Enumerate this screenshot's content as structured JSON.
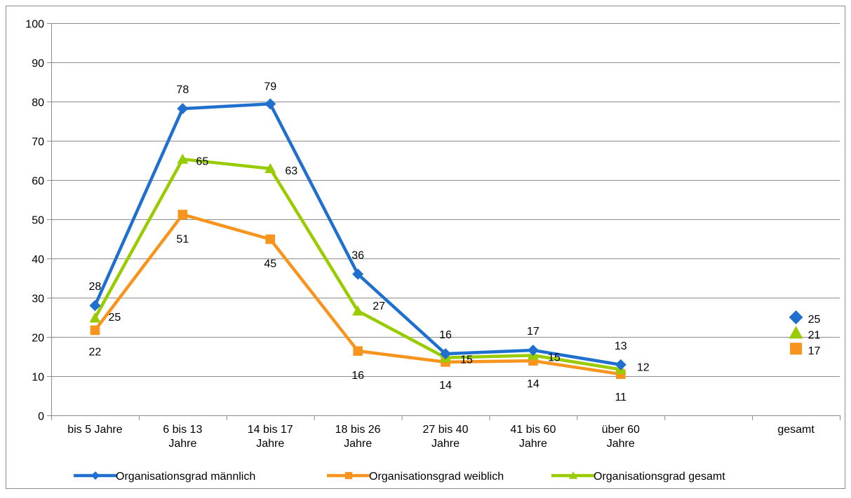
{
  "chart_data": {
    "type": "line",
    "categories": [
      [
        "bis 5 Jahre"
      ],
      [
        "6 bis 13",
        "Jahre"
      ],
      [
        "14 bis 17",
        "Jahre"
      ],
      [
        "18 bis 26",
        "Jahre"
      ],
      [
        "27 bis 40",
        "Jahre"
      ],
      [
        "41 bis 60",
        "Jahre"
      ],
      [
        "über 60",
        "Jahre"
      ],
      [
        ""
      ],
      [
        "gesamt"
      ]
    ],
    "ylim": [
      0,
      100
    ],
    "ytick_step": 10,
    "yticks": [
      "0",
      "10",
      "20",
      "30",
      "40",
      "50",
      "60",
      "70",
      "80",
      "90",
      "100"
    ],
    "grid": true,
    "legend_position": "bottom",
    "series": [
      {
        "name": "Organisationsgrad männlich",
        "color": "#1f6fcf",
        "marker": "diamond",
        "values": [
          28,
          78.2,
          79.4,
          36,
          15.7,
          16.6,
          12.9,
          null,
          25
        ],
        "labels": [
          "28",
          "78",
          "79",
          "36",
          "16",
          "17",
          "13",
          null,
          "25"
        ]
      },
      {
        "name": "Organisationsgrad weiblich",
        "color": "#f7941d",
        "marker": "square",
        "values": [
          21.7,
          51.2,
          44.9,
          16.4,
          13.6,
          13.9,
          10.5,
          null,
          17
        ],
        "labels": [
          "22",
          "51",
          "45",
          "16",
          "14",
          "14",
          "11",
          null,
          "17"
        ]
      },
      {
        "name": "Organisationsgrad gesamt",
        "color": "#99cc00",
        "marker": "triangle",
        "values": [
          24.8,
          65.3,
          62.9,
          26.6,
          14.7,
          15.3,
          11.7,
          null,
          21
        ],
        "labels": [
          "25",
          "65",
          "63",
          "27",
          "15",
          "15",
          "12",
          null,
          "21"
        ]
      }
    ]
  }
}
